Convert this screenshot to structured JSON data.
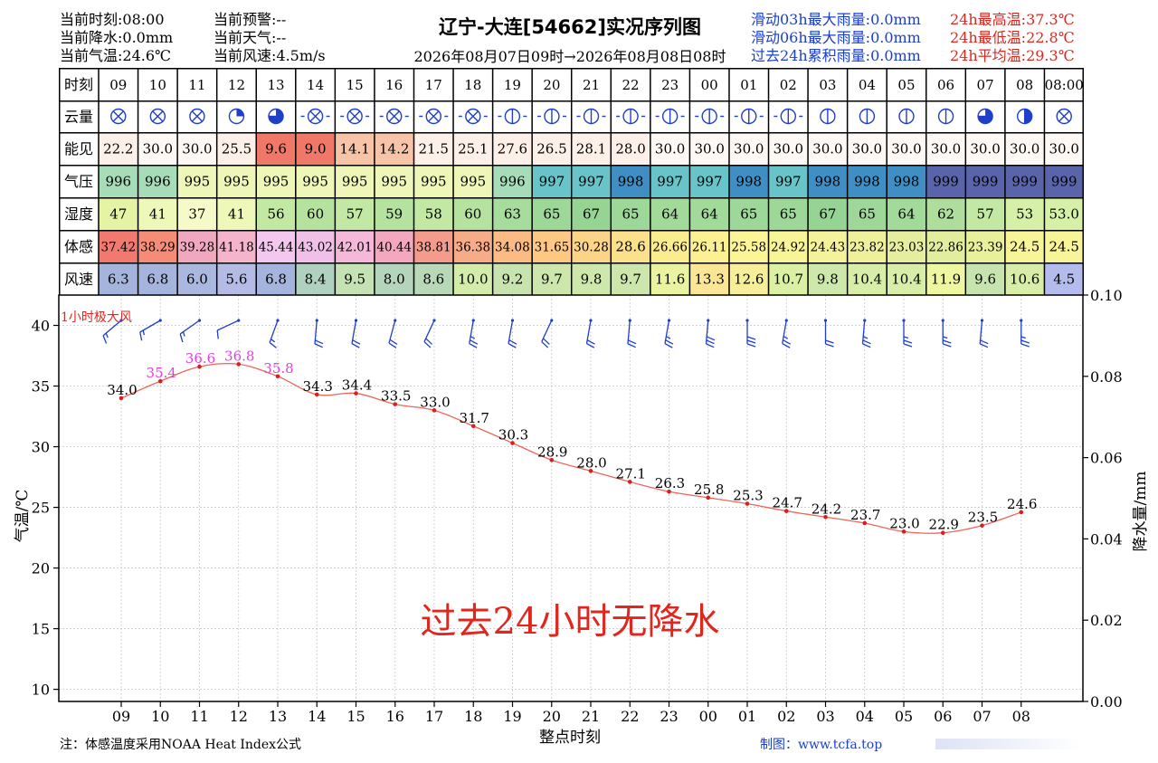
{
  "header": {
    "left": [
      {
        "label": "当前时刻",
        "value": "08:00"
      },
      {
        "label": "当前降水",
        "value": "0.0mm"
      },
      {
        "label": "当前气温",
        "value": "24.6℃"
      }
    ],
    "middle": [
      {
        "label": "当前预警",
        "value": "--"
      },
      {
        "label": "当前天气",
        "value": "--"
      },
      {
        "label": "当前风速",
        "value": "4.5m/s"
      }
    ],
    "rain_stats": [
      {
        "label": "滑动03h最大雨量",
        "value": "0.0mm"
      },
      {
        "label": "滑动06h最大雨量",
        "value": "0.0mm"
      },
      {
        "label": "过去24h累积雨量",
        "value": "0.0mm"
      }
    ],
    "temp_stats": [
      {
        "label": "24h最高温",
        "value": "37.3℃"
      },
      {
        "label": "24h最低温",
        "value": "22.8℃"
      },
      {
        "label": "24h平均温",
        "value": "29.3℃"
      }
    ]
  },
  "title": "辽宁-大连[54662]实况序列图",
  "period": "2026年08月07日09时→2026年08月08日08时",
  "colors": {
    "header_blue": "#1a3fd0",
    "header_red": "#e0261d",
    "temp_line": "#f0655a",
    "temp_point": "#d81e1e",
    "wind_barb": "#1f3fc8",
    "gust_label": "#e0261d",
    "hot_label": "#e040e0"
  },
  "table": {
    "hours": [
      "09",
      "10",
      "11",
      "12",
      "13",
      "14",
      "15",
      "16",
      "17",
      "18",
      "19",
      "20",
      "21",
      "22",
      "23",
      "00",
      "01",
      "02",
      "03",
      "04",
      "05",
      "06",
      "07",
      "08",
      "08:00"
    ],
    "rows": [
      {
        "key": "time",
        "label": "时刻"
      },
      {
        "key": "cloud",
        "label": "云量"
      },
      {
        "key": "vis",
        "label": "能见"
      },
      {
        "key": "pres",
        "label": "气压"
      },
      {
        "key": "hum",
        "label": "湿度"
      },
      {
        "key": "feel",
        "label": "体感"
      },
      {
        "key": "wind",
        "label": "风速"
      }
    ],
    "cloud_icon": "cloud-cover-symbol",
    "cloud_types": [
      "x",
      "x",
      "x",
      "q",
      "q3",
      "xd",
      "xd",
      "xd",
      "xd",
      "xd",
      "hd",
      "hd",
      "hd",
      "hd",
      "hd",
      "hd",
      "hd",
      "hd",
      "h",
      "h",
      "h",
      "h",
      "q3",
      "hf",
      "x"
    ],
    "visibility": [
      "22.2",
      "30.0",
      "30.0",
      "25.5",
      "9.6",
      "9.0",
      "14.1",
      "14.2",
      "21.5",
      "25.1",
      "27.6",
      "26.5",
      "28.1",
      "28.0",
      "30.0",
      "30.0",
      "30.0",
      "30.0",
      "30.0",
      "30.0",
      "30.0",
      "30.0",
      "30.0",
      "30.0",
      "30.0"
    ],
    "visibility_colors": [
      "#fdf0e8",
      "#fdf8f4",
      "#fdf8f4",
      "#fdf0e8",
      "#f07868",
      "#f07868",
      "#f8c4a8",
      "#f8c4a8",
      "#fdf0e8",
      "#fdf0e8",
      "#fdf0e8",
      "#fdf0e8",
      "#fdf0e8",
      "#fdf0e8",
      "#fdf8f4",
      "#fdf8f4",
      "#fdf8f4",
      "#fdf8f4",
      "#fdf8f4",
      "#fdf8f4",
      "#fdf8f4",
      "#fdf8f4",
      "#fdf8f4",
      "#fdf8f4",
      "#fdf8f4"
    ],
    "pressure": [
      "996",
      "996",
      "995",
      "995",
      "995",
      "995",
      "995",
      "995",
      "995",
      "995",
      "996",
      "997",
      "997",
      "998",
      "997",
      "997",
      "998",
      "997",
      "998",
      "998",
      "998",
      "999",
      "999",
      "999",
      "999"
    ],
    "pressure_colors": [
      "#a6dcb8",
      "#a6dcb8",
      "#eef6b8",
      "#eef6b8",
      "#eef6b8",
      "#eef6b8",
      "#eef6b8",
      "#eef6b8",
      "#eef6b8",
      "#eef6b8",
      "#a6dcb8",
      "#68c4c8",
      "#68c4c8",
      "#3f8ec4",
      "#68c4c8",
      "#68c4c8",
      "#3f8ec4",
      "#68c4c8",
      "#3f8ec4",
      "#3f8ec4",
      "#3f8ec4",
      "#5a64aa",
      "#5a64aa",
      "#5a64aa",
      "#5a64aa"
    ],
    "humidity": [
      "47",
      "41",
      "37",
      "41",
      "56",
      "60",
      "57",
      "59",
      "58",
      "60",
      "63",
      "65",
      "67",
      "65",
      "64",
      "64",
      "65",
      "65",
      "67",
      "65",
      "64",
      "62",
      "57",
      "53",
      "53.0"
    ],
    "humidity_colors": [
      "#e4f4a4",
      "#eef8b8",
      "#f6fac8",
      "#eef8b8",
      "#c2e8a4",
      "#b6e2a0",
      "#c2e8a4",
      "#b6e2a0",
      "#c2e8a4",
      "#b6e2a0",
      "#a6dc9c",
      "#9ed898",
      "#96d494",
      "#9ed898",
      "#a2da9a",
      "#a2da9a",
      "#9ed898",
      "#9ed898",
      "#96d494",
      "#9ed898",
      "#a2da9a",
      "#aedd9c",
      "#c2e8a4",
      "#d6f0a8",
      "#d6f0a8"
    ],
    "feels_like": [
      "37.42",
      "38.29",
      "39.28",
      "41.18",
      "45.44",
      "43.02",
      "42.01",
      "40.44",
      "38.81",
      "36.38",
      "34.08",
      "31.65",
      "30.28",
      "28.6",
      "26.66",
      "26.11",
      "25.58",
      "24.92",
      "24.43",
      "23.82",
      "23.03",
      "22.86",
      "23.39",
      "24.5",
      "24.5"
    ],
    "feels_colors": [
      "#f07a70",
      "#f48c78",
      "#f0a8c0",
      "#f4b4cc",
      "#f4c8ee",
      "#f0c0e8",
      "#f4b8d8",
      "#f4a8c0",
      "#f49c8c",
      "#f6ac88",
      "#fabc84",
      "#fcc884",
      "#fcd488",
      "#fce08c",
      "#fcec90",
      "#fcf092",
      "#fcf496",
      "#f8f498",
      "#f4f29a",
      "#eef09c",
      "#e4ee9e",
      "#e2ee9e",
      "#e8f09c",
      "#f8f498",
      "#f8f498"
    ],
    "wind_speed": [
      "6.3",
      "6.8",
      "6.0",
      "5.6",
      "6.8",
      "8.4",
      "9.5",
      "8.0",
      "8.6",
      "10.0",
      "9.2",
      "9.7",
      "9.8",
      "9.7",
      "11.6",
      "13.3",
      "12.6",
      "10.7",
      "9.8",
      "10.4",
      "10.4",
      "11.9",
      "9.6",
      "10.6",
      "4.5"
    ],
    "wind_colors": [
      "#a4b4dc",
      "#a4b4dc",
      "#aab8e0",
      "#b4bce6",
      "#a4b4dc",
      "#b0d0c0",
      "#c4e2b4",
      "#b4d4bc",
      "#b8d8b8",
      "#d4ecaa",
      "#c8e4ae",
      "#cce6ac",
      "#cee8ac",
      "#cce6ac",
      "#eaf4a0",
      "#fae694",
      "#f6ee98",
      "#dcf0a4",
      "#cee8ac",
      "#d8eea8",
      "#d8eea8",
      "#eef6a0",
      "#c8e4ae",
      "#d8eea8",
      "#b4bcee"
    ]
  },
  "chart_data": {
    "type": "line",
    "x": [
      "09",
      "10",
      "11",
      "12",
      "13",
      "14",
      "15",
      "16",
      "17",
      "18",
      "19",
      "20",
      "21",
      "22",
      "23",
      "00",
      "01",
      "02",
      "03",
      "04",
      "05",
      "06",
      "07",
      "08"
    ],
    "series": [
      {
        "values": [
          34.0,
          35.4,
          36.6,
          36.8,
          35.8,
          34.3,
          34.4,
          33.5,
          33.0,
          31.7,
          30.3,
          28.9,
          28.0,
          27.1,
          26.3,
          25.8,
          25.3,
          24.7,
          24.2,
          23.7,
          23.0,
          22.9,
          23.5,
          24.6
        ]
      }
    ],
    "point_labels": [
      "34.0",
      "35.4",
      "36.6",
      "36.8",
      "35.8",
      "34.3",
      "34.4",
      "33.5",
      "33.0",
      "31.7",
      "30.3",
      "28.9",
      "28.0",
      "27.1",
      "26.3",
      "25.8",
      "25.3",
      "24.7",
      "24.2",
      "23.7",
      "23.0",
      "22.9",
      "23.5",
      "24.6"
    ],
    "hot_threshold": 35,
    "xlabel": "整点时刻",
    "ylabel": "气温/℃",
    "y2label": "降水量/mm",
    "ylim": [
      9,
      42.5
    ],
    "yticks": [
      10,
      15,
      20,
      25,
      30,
      35,
      40
    ],
    "y2lim": [
      0,
      0.1
    ],
    "y2ticks": [
      "0.00",
      "0.02",
      "0.04",
      "0.06",
      "0.08",
      "0.10"
    ],
    "grid": true,
    "wind_label": "1小时极大风",
    "wind_barb_icon": "wind-barb-symbol",
    "wind_dirs": [
      230,
      240,
      235,
      245,
      200,
      185,
      190,
      195,
      205,
      190,
      190,
      205,
      190,
      185,
      190,
      185,
      180,
      190,
      180,
      185,
      180,
      180,
      185,
      180
    ],
    "wind_speeds": [
      6.3,
      6.8,
      6.0,
      5.6,
      6.8,
      8.4,
      9.5,
      8.0,
      8.6,
      10.0,
      9.2,
      9.7,
      9.8,
      9.7,
      11.6,
      13.3,
      12.6,
      10.7,
      9.8,
      10.4,
      10.4,
      11.9,
      9.6,
      10.6
    ],
    "annotation": "过去24小时无降水"
  },
  "footnote": "注：体感温度采用NOAA Heat Index公式",
  "credit": "制图：www.tcfa.top"
}
